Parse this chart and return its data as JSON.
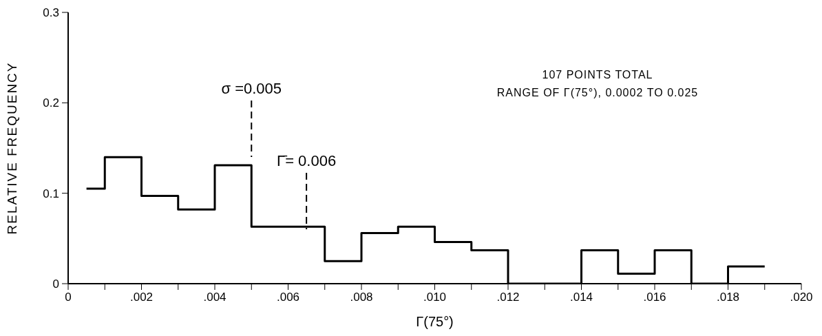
{
  "chart_data": {
    "type": "step",
    "xlabel": "Γ(75°)",
    "ylabel": "RELATIVE FREQUENCY",
    "x": [
      0.0005,
      0.001,
      0.002,
      0.003,
      0.004,
      0.005,
      0.006,
      0.007,
      0.008,
      0.009,
      0.01,
      0.011,
      0.012,
      0.013,
      0.014,
      0.015,
      0.016,
      0.017,
      0.018,
      0.019
    ],
    "values": [
      0.105,
      0.14,
      0.097,
      0.082,
      0.131,
      0.063,
      0.063,
      0.025,
      0.056,
      0.063,
      0.046,
      0.037,
      0,
      0,
      0.037,
      0.011,
      0.037,
      0,
      0.019,
      0.019
    ],
    "color": "#000000",
    "xlim": [
      0,
      0.02
    ],
    "xticks": [
      {
        "value": 0,
        "label": "0"
      },
      {
        "value": 0.001,
        "label": null
      },
      {
        "value": 0.002,
        "label": ".002"
      },
      {
        "value": 0.003,
        "label": null
      },
      {
        "value": 0.004,
        "label": ".004"
      },
      {
        "value": 0.005,
        "label": null
      },
      {
        "value": 0.006,
        "label": ".006"
      },
      {
        "value": 0.007,
        "label": null
      },
      {
        "value": 0.008,
        "label": ".008"
      },
      {
        "value": 0.009,
        "label": null
      },
      {
        "value": 0.01,
        "label": ".010"
      },
      {
        "value": 0.011,
        "label": null
      },
      {
        "value": 0.012,
        "label": ".012"
      },
      {
        "value": 0.013,
        "label": null
      },
      {
        "value": 0.014,
        "label": ".014"
      },
      {
        "value": 0.015,
        "label": null
      },
      {
        "value": 0.016,
        "label": ".016"
      },
      {
        "value": 0.017,
        "label": null
      },
      {
        "value": 0.018,
        "label": ".018"
      },
      {
        "value": 0.019,
        "label": null
      },
      {
        "value": 0.02,
        "label": ".020"
      }
    ],
    "ylim": [
      0,
      0.3
    ],
    "yticks": [
      0,
      0.1,
      0.2,
      0.3
    ],
    "ref_lines": [
      {
        "axis": "x",
        "value": 0.005,
        "label": "σ =0.005",
        "line_style": "dashed"
      },
      {
        "axis": "x",
        "value": 0.0065,
        "label": "Γ̄= 0.006",
        "line_style": "dashed"
      }
    ],
    "annotations": [
      "107 POINTS TOTAL",
      "RANGE OF Γ(75°), 0.0002 TO 0.025"
    ],
    "grid": false
  }
}
